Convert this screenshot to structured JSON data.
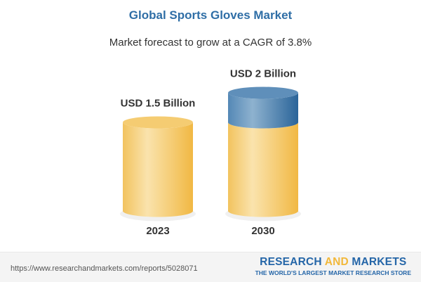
{
  "chart_data": {
    "type": "bar",
    "style": "3d-cylinder",
    "title": "Global Sports Gloves Market",
    "subtitle": "Market forecast to grow at a CAGR of 3.8%",
    "categories": [
      "2023",
      "2030"
    ],
    "values": [
      1.5,
      2
    ],
    "unit": "USD Billion",
    "data_labels": [
      "USD 1.5 Billion",
      "USD 2 Billion"
    ],
    "colors": {
      "base": "#f2c155",
      "growth": "#4a82b2"
    }
  },
  "footer": {
    "url": "https://www.researchandmarkets.com/reports/5028071",
    "logo_part1": "RESEARCH ",
    "logo_part2": "AND",
    "logo_part3": " MARKETS",
    "tagline": "THE WORLD'S LARGEST MARKET RESEARCH STORE"
  }
}
